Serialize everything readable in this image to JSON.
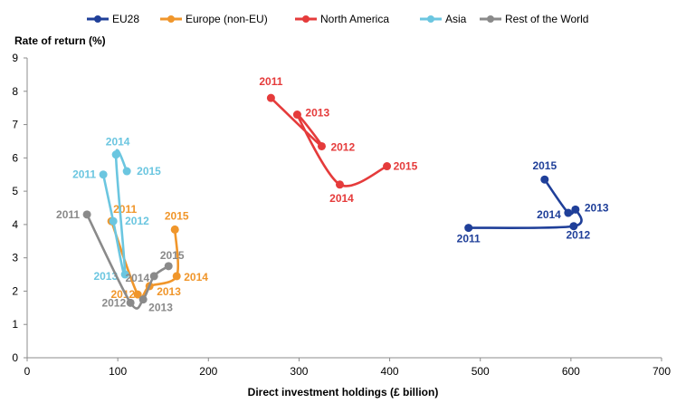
{
  "chart_data": {
    "type": "scatter",
    "xlabel": "Direct investment  holdings (£ billion)",
    "ylabel": "Rate of return (%)",
    "xlim": [
      0,
      700
    ],
    "ylim": [
      0,
      9
    ],
    "xticks": [
      "0",
      "100",
      "200",
      "300",
      "400",
      "500",
      "600",
      "700"
    ],
    "yticks": [
      "0",
      "1",
      "2",
      "3",
      "4",
      "5",
      "6",
      "7",
      "8",
      "9"
    ],
    "grid": false,
    "legend_position": "top",
    "series": [
      {
        "name": "EU28",
        "color": "#1f3f99",
        "points": [
          {
            "year": "2011",
            "x": 487,
            "y": 3.9
          },
          {
            "year": "2012",
            "x": 603,
            "y": 3.95
          },
          {
            "year": "2013",
            "x": 605,
            "y": 4.45
          },
          {
            "year": "2014",
            "x": 597,
            "y": 4.35
          },
          {
            "year": "2015",
            "x": 571,
            "y": 5.35
          }
        ]
      },
      {
        "name": "Europe (non-EU)",
        "color": "#f0962b",
        "points": [
          {
            "year": "2011",
            "x": 93,
            "y": 4.1
          },
          {
            "year": "2012",
            "x": 122,
            "y": 1.9
          },
          {
            "year": "2013",
            "x": 135,
            "y": 2.15
          },
          {
            "year": "2014",
            "x": 165,
            "y": 2.45
          },
          {
            "year": "2015",
            "x": 163,
            "y": 3.85
          }
        ]
      },
      {
        "name": "North America",
        "color": "#e53b3b",
        "points": [
          {
            "year": "2011",
            "x": 269,
            "y": 7.8
          },
          {
            "year": "2012",
            "x": 325,
            "y": 6.35
          },
          {
            "year": "2013",
            "x": 298,
            "y": 7.3
          },
          {
            "year": "2014",
            "x": 345,
            "y": 5.2
          },
          {
            "year": "2015",
            "x": 397,
            "y": 5.75
          }
        ]
      },
      {
        "name": "Asia",
        "color": "#6bc6e0",
        "points": [
          {
            "year": "2011",
            "x": 84,
            "y": 5.5
          },
          {
            "year": "2012",
            "x": 95,
            "y": 4.1
          },
          {
            "year": "2013",
            "x": 108,
            "y": 2.5
          },
          {
            "year": "2014",
            "x": 98,
            "y": 6.1
          },
          {
            "year": "2015",
            "x": 110,
            "y": 5.6
          }
        ]
      },
      {
        "name": "Rest of the World",
        "color": "#8a8a8a",
        "points": [
          {
            "year": "2011",
            "x": 66,
            "y": 4.3
          },
          {
            "year": "2012",
            "x": 114,
            "y": 1.65
          },
          {
            "year": "2013",
            "x": 128,
            "y": 1.75
          },
          {
            "year": "2014",
            "x": 140,
            "y": 2.45
          },
          {
            "year": "2015",
            "x": 156,
            "y": 2.75
          }
        ]
      }
    ]
  }
}
